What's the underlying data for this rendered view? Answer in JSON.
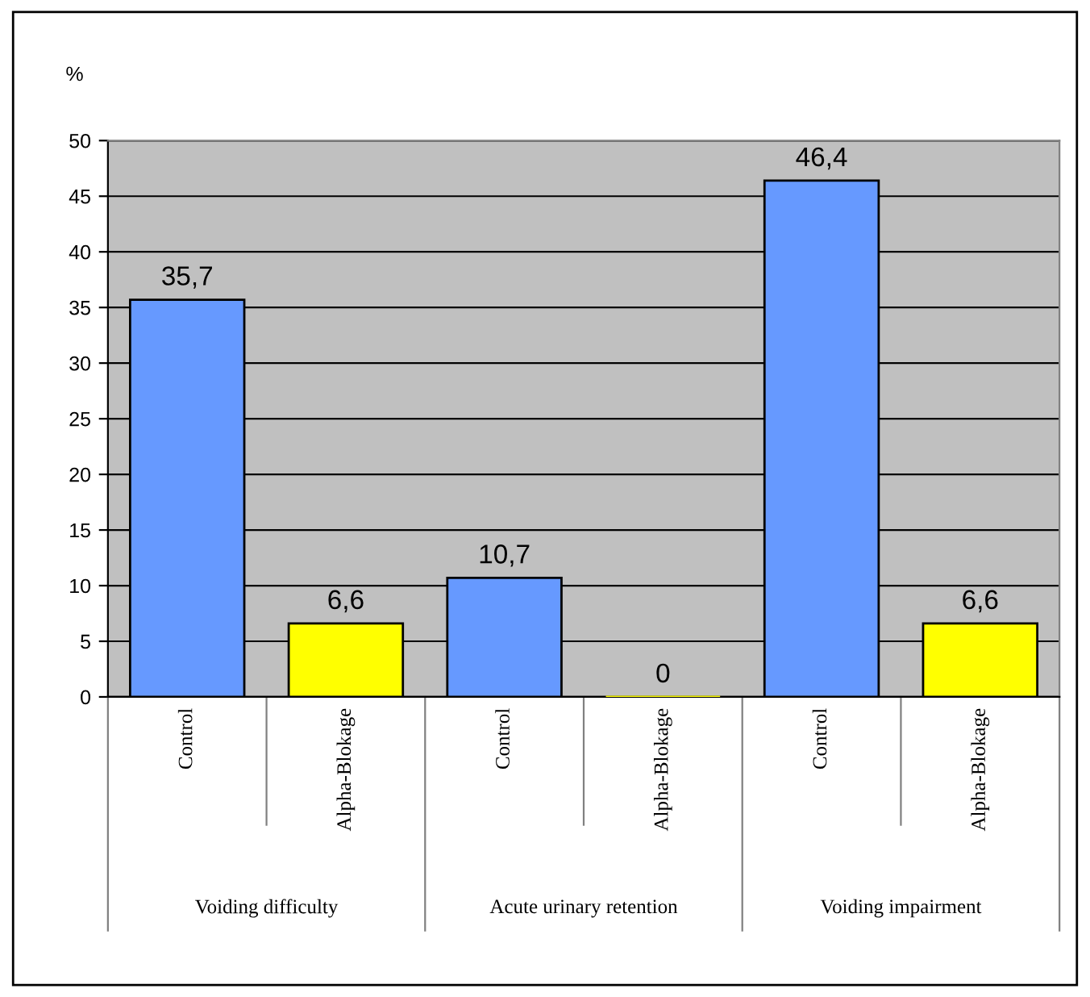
{
  "chart_data": {
    "type": "bar",
    "ylabel": "%",
    "categories": [
      "Control",
      "Alpha-Blokage",
      "Control",
      "Alpha-Blokage",
      "Control",
      "Alpha-Blokage"
    ],
    "values": [
      35.7,
      6.6,
      10.7,
      0,
      46.4,
      6.6
    ],
    "colors": [
      "#6699ff",
      "#ffff00",
      "#6699ff",
      "#ffff00",
      "#6699ff",
      "#ffff00"
    ],
    "value_labels": [
      "35,7",
      "6,6",
      "10,7",
      "0",
      "46,4",
      "6,6"
    ],
    "annotations": [
      "Voiding difficulty",
      "Acute urinary retention",
      "Voiding impairment"
    ],
    "ylim": [
      0,
      50
    ],
    "yticks": [
      0,
      5,
      10,
      15,
      20,
      25,
      30,
      35,
      40,
      45,
      50
    ],
    "grid": "y",
    "legend": false
  }
}
